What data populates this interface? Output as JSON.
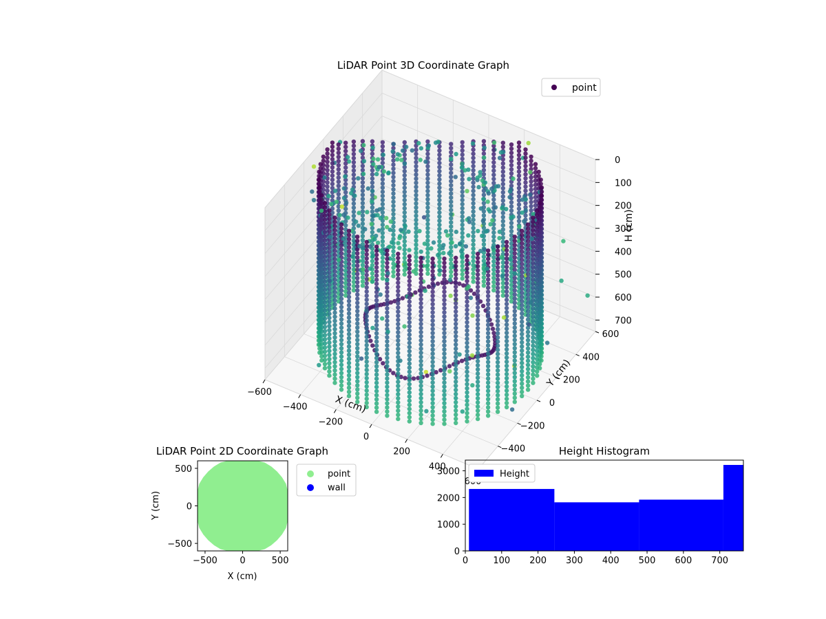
{
  "chart_data": [
    {
      "type": "scatter",
      "projection": "3d",
      "title": "LiDAR Point 3D Coordinate Graph",
      "xlabel": "X (cm)",
      "ylabel": "Y (cm)",
      "zlabel": "H (cm)",
      "xlim": [
        -600,
        600
      ],
      "ylim": [
        -600,
        600
      ],
      "zlim": [
        0,
        750
      ],
      "z_inverted": true,
      "xticks": [
        -600,
        -400,
        -200,
        0,
        200,
        400,
        600
      ],
      "yticks": [
        -600,
        -400,
        -200,
        0,
        200,
        400,
        600
      ],
      "zticks": [
        0,
        100,
        200,
        300,
        400,
        500,
        600,
        700
      ],
      "colormap": "viridis",
      "legend": {
        "entries": [
          "point"
        ],
        "position": "upper-right"
      },
      "series": [
        {
          "name": "point",
          "description_of_shape": "vertical cylindrical wall of points, radius about 550 cm, heights 0-720 cm, plus scattered ground points",
          "wall_radius": 550,
          "height_range": [
            0,
            720
          ],
          "sample_points": [
            {
              "x": 550,
              "y": 0,
              "z": 0
            },
            {
              "x": 550,
              "y": 0,
              "z": 700
            },
            {
              "x": 0,
              "y": 550,
              "z": 0
            },
            {
              "x": 0,
              "y": 550,
              "z": 700
            },
            {
              "x": -550,
              "y": 0,
              "z": 0
            },
            {
              "x": -550,
              "y": 0,
              "z": 700
            },
            {
              "x": 0,
              "y": -550,
              "z": 0
            },
            {
              "x": 0,
              "y": -550,
              "z": 700
            },
            {
              "x": 390,
              "y": 390,
              "z": 350
            },
            {
              "x": -390,
              "y": -390,
              "z": 350
            },
            {
              "x": 600,
              "y": -500,
              "z": 720
            },
            {
              "x": -620,
              "y": 300,
              "z": 720
            }
          ]
        }
      ]
    },
    {
      "type": "scatter",
      "title": "LiDAR Point 2D Coordinate Graph",
      "xlabel": "X (cm)",
      "ylabel": "Y (cm)",
      "xlim": [
        -600,
        600
      ],
      "ylim": [
        -600,
        600
      ],
      "xticks": [
        -500,
        0,
        500
      ],
      "yticks": [
        -500,
        0,
        500
      ],
      "legend": {
        "entries": [
          "point",
          "wall"
        ],
        "position": "outside-right"
      },
      "series": [
        {
          "name": "point",
          "color": "#90ee90",
          "extent_x": [
            -600,
            600
          ],
          "extent_y": [
            -600,
            600
          ]
        },
        {
          "name": "wall",
          "color": "#0000ff"
        }
      ]
    },
    {
      "type": "bar",
      "subtype": "histogram",
      "title": "Height Histogram",
      "xlabel": "",
      "ylabel": "",
      "xlim": [
        0,
        765
      ],
      "ylim": [
        0,
        3400
      ],
      "xticks": [
        0,
        100,
        200,
        300,
        400,
        500,
        600,
        700
      ],
      "yticks": [
        0,
        1000,
        2000,
        3000
      ],
      "color": "#0000ff",
      "legend": {
        "entries": [
          "Height"
        ],
        "position": "upper-left"
      },
      "bins": [
        {
          "x0": 10,
          "x1": 245,
          "count": 2320
        },
        {
          "x0": 245,
          "x1": 478,
          "count": 1820
        },
        {
          "x0": 478,
          "x1": 710,
          "count": 1920
        },
        {
          "x0": 710,
          "x1": 765,
          "count": 3220
        }
      ]
    }
  ]
}
